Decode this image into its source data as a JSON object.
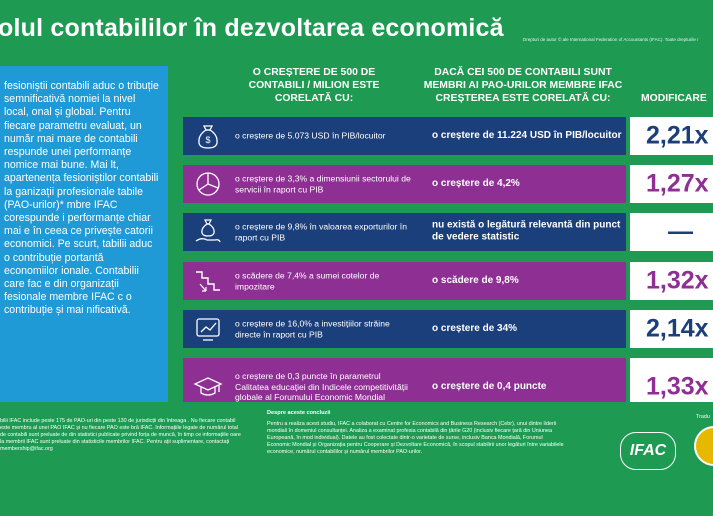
{
  "title": "olul contabililor în dezvoltarea economică",
  "copyright": "Drepturi de autor © ale International Federation of Accountants (IFAC). Toate drepturile r",
  "left_text": "fesioniștii contabili aduc o tribuție semnificativă nomiei la nivel local, onal și global. Pentru fiecare parametru evaluat, un număr mai mare de contabili respunde unei performanțe nomice mai bune. Mai lt, apartenența fesioniștilor contabili la ganizații profesionale tabile (PAO-urilor)* mbre IFAC corespunde i performanțe chiar mai e în ceea ce privește catorii economici. Pe scurt, tabilii aduc o contribuție portantă economiilor ionale. Contabilii care fac e din organizații fesionale membre IFAC c o contribuție și mai nificativă.",
  "columns": {
    "c1": "O CREȘTERE DE 500 DE CONTABILI / MILION ESTE CORELATĂ CU:",
    "c2": "DACĂ CEI 500 DE CONTABILI SUNT MEMBRI AI PAO-URILOR MEMBRE IFAC CREȘTEREA ESTE CORELATĂ CU:",
    "c3": "MODIFICARE"
  },
  "rows": [
    {
      "icon": "money-bag-icon",
      "left": "o creștere de 5.073 USD în PIB/locuitor",
      "mid": "o creștere de 11.224 USD în PIB/locuitor",
      "value": "2,21x",
      "color": "navy"
    },
    {
      "icon": "pie-chart-icon",
      "left": "o creștere de 3,3% a dimensiunii sectorului de servicii în raport cu PIB",
      "mid": "o creștere de 4,2%",
      "value": "1,27x",
      "color": "purple"
    },
    {
      "icon": "hand-money-icon",
      "left": "o creștere de 9,8% în valoarea exporturilor în raport cu PIB",
      "mid": "nu există o legătură relevantă din punct de vedere statistic",
      "value": "—",
      "color": "navy"
    },
    {
      "icon": "stairs-down-icon",
      "left": "o scădere de 7,4% a sumei cotelor de impozitare",
      "mid": "o scădere de 9,8%",
      "value": "1,32x",
      "color": "purple"
    },
    {
      "icon": "growth-chart-icon",
      "left": "o creștere de 16,0% a investițiilor străine directe în raport cu PIB",
      "mid": "o creștere de 34%",
      "value": "2,14x",
      "color": "navy"
    },
    {
      "icon": "graduation-cap-icon",
      "left": "o creștere de 0,3 puncte în parametrul Calitatea educației din Indicele competitivității globale al Forumului Economic Mondial",
      "mid": "o creștere de 0,4 puncte",
      "value": "1,33x",
      "color": "purple"
    }
  ],
  "footer": {
    "left": "bilii IFAC include peste 175 de PAO-uri din peste 130 de jurisdicții din întreaga . Nu fiecare contabil este membru al unei PAO IFAC și nu fiecare PAO este bră IFAC. Informațiile legate de numărul total de contabili sunt preluate de din statistici publicate privind forța de muncă, în timp ce informațiile oare la membrii IFAC sunt preluate din statisticile membrilor IFAC. Pentru ații suplimentare, contactați membership@ifac.org",
    "about_title": "Despre aceste concluzii",
    "about_text": "Pentru a realiza acest studiu, IFAC a colaborat cu Centre for Economics and Business Research (Cebr), unui dintre liderii mondiali în domeniul consultanței. Analiza a examinat profesia contabilă din țările G20 (inclusiv fiecare țară din Uniunea Europeană, în mod individual). Datele au fost colectate dintr-o varietate de surse, inclusiv Banca Mondială, Forumul Economic Mondial și Organizația pentru Cooperare și Dezvoltare Economică, în scopul stabilirii unor legături între variabilele economice, numărul contabililor și numărul membrilor PAO-urilor.",
    "logo": "IFAC",
    "translated": "Tradu"
  }
}
